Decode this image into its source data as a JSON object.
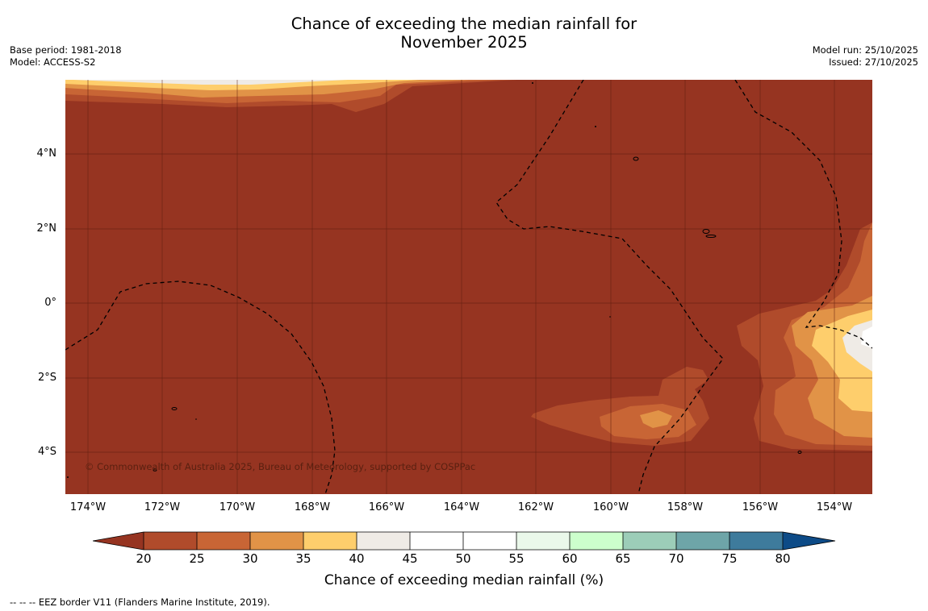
{
  "title_line1": "Chance of exceeding the median rainfall for",
  "title_line2": "November 2025",
  "base_period": "Base period: 1981-2018",
  "model": "Model: ACCESS-S2",
  "model_run": "Model run: 25/10/2025",
  "issued": "Issued: 27/10/2025",
  "copyright": "© Commonwealth of Australia 2025, Bureau of Meteorology, supported by COSPPac",
  "lat_labels": [
    "4°N",
    "2°N",
    "0°",
    "2°S",
    "4°S"
  ],
  "lon_labels": [
    "174°W",
    "172°W",
    "170°W",
    "168°W",
    "166°W",
    "164°W",
    "162°W",
    "160°W",
    "158°W",
    "156°W",
    "154°W"
  ],
  "colorbar": {
    "ticks": [
      "20",
      "25",
      "30",
      "35",
      "40",
      "45",
      "50",
      "55",
      "60",
      "65",
      "70",
      "75",
      "80"
    ],
    "colors": [
      "#963421",
      "#b04b2b",
      "#c86535",
      "#e19347",
      "#fece6c",
      "#efebe6",
      "#ffffff",
      "#ffffff",
      "#eaf8ea",
      "#ccffcc",
      "#9ccdb8",
      "#6ea5a8",
      "#3e7b9c",
      "#0d4b87"
    ],
    "label": "Chance of exceeding median rainfall (%)"
  },
  "legend_eez": "--  --  -- EEZ border V11 (Flanders Marine Institute, 2019)."
}
